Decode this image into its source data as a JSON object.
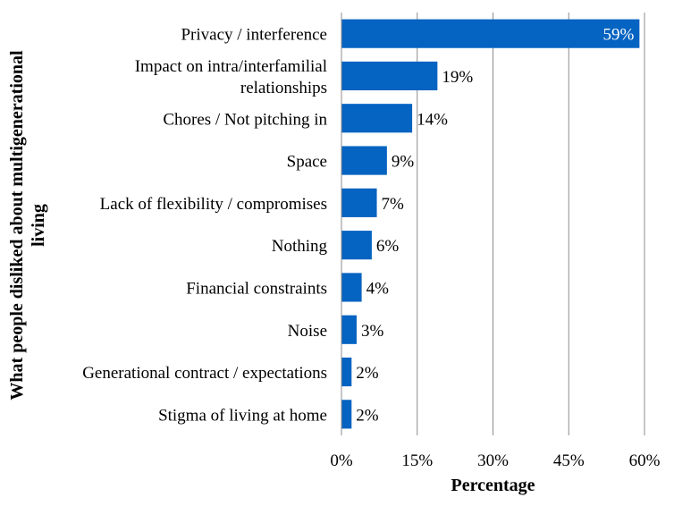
{
  "chart_data": {
    "type": "bar",
    "orientation": "horizontal",
    "categories": [
      [
        "Privacy / interference"
      ],
      [
        "Impact on intra/interfamilial",
        "relationships"
      ],
      [
        "Chores / Not pitching in"
      ],
      [
        "Space"
      ],
      [
        "Lack of flexibility / compromises"
      ],
      [
        "Nothing"
      ],
      [
        "Financial constraints"
      ],
      [
        "Noise"
      ],
      [
        "Generational contract / expectations"
      ],
      [
        "Stigma of living at home"
      ]
    ],
    "values": [
      59,
      19,
      14,
      9,
      7,
      6,
      4,
      3,
      2,
      2
    ],
    "data_labels": [
      "59%",
      "19%",
      "14%",
      "9%",
      "7%",
      "6%",
      "4%",
      "3%",
      "2%",
      "2%"
    ],
    "xlim": [
      0,
      60
    ],
    "xticks": [
      0,
      15,
      30,
      45,
      60
    ],
    "xtick_labels": [
      "0%",
      "15%",
      "30%",
      "45%",
      "60%"
    ],
    "xlabel": "Percentage",
    "ylabel": [
      "What people disliked about multigenerational",
      "living"
    ],
    "grid": "vertical",
    "legend": "none",
    "colors": {
      "bar": "#0563C1",
      "grid": "#8c8c8c"
    }
  }
}
